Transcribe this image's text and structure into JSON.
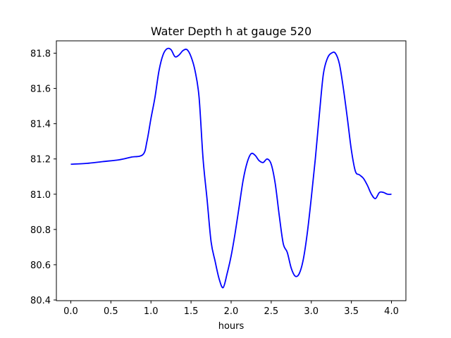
{
  "chart_data": {
    "type": "line",
    "title": "Water Depth h at gauge 520",
    "xlabel": "hours",
    "ylabel": "",
    "xlim": [
      -0.18,
      4.18
    ],
    "ylim": [
      80.396,
      81.87
    ],
    "xticks": [
      0.0,
      0.5,
      1.0,
      1.5,
      2.0,
      2.5,
      3.0,
      3.5,
      4.0
    ],
    "xtick_labels": [
      "0.0",
      "0.5",
      "1.0",
      "1.5",
      "2.0",
      "2.5",
      "3.0",
      "3.5",
      "4.0"
    ],
    "yticks": [
      80.4,
      80.6,
      80.8,
      81.0,
      81.2,
      81.4,
      81.6,
      81.8
    ],
    "ytick_labels": [
      "80.4",
      "80.6",
      "80.8",
      "81.0",
      "81.2",
      "81.4",
      "81.6",
      "81.8"
    ],
    "grid": false,
    "legend": "none",
    "series": [
      {
        "color": "#0000ff",
        "x": [
          0.0,
          0.2,
          0.4,
          0.6,
          0.75,
          0.9,
          0.95,
          1.0,
          1.05,
          1.1,
          1.15,
          1.2,
          1.25,
          1.3,
          1.35,
          1.4,
          1.45,
          1.5,
          1.55,
          1.6,
          1.65,
          1.7,
          1.75,
          1.8,
          1.85,
          1.9,
          1.95,
          2.0,
          2.05,
          2.1,
          2.15,
          2.2,
          2.25,
          2.3,
          2.35,
          2.4,
          2.45,
          2.5,
          2.55,
          2.6,
          2.65,
          2.7,
          2.75,
          2.8,
          2.85,
          2.9,
          2.95,
          3.0,
          3.05,
          3.1,
          3.15,
          3.2,
          3.25,
          3.3,
          3.35,
          3.4,
          3.45,
          3.5,
          3.55,
          3.6,
          3.65,
          3.7,
          3.75,
          3.8,
          3.85,
          3.9,
          3.95,
          4.0
        ],
        "y": [
          81.17,
          81.175,
          81.185,
          81.195,
          81.21,
          81.225,
          81.3,
          81.43,
          81.55,
          81.7,
          81.79,
          81.825,
          81.82,
          81.78,
          81.79,
          81.815,
          81.82,
          81.78,
          81.7,
          81.55,
          81.2,
          80.97,
          80.73,
          80.62,
          80.52,
          80.47,
          80.55,
          80.65,
          80.78,
          80.93,
          81.08,
          81.18,
          81.23,
          81.22,
          81.19,
          81.18,
          81.2,
          81.17,
          81.06,
          80.88,
          80.72,
          80.67,
          80.58,
          80.535,
          80.55,
          80.63,
          80.78,
          80.98,
          81.2,
          81.45,
          81.68,
          81.77,
          81.8,
          81.8,
          81.74,
          81.6,
          81.43,
          81.25,
          81.13,
          81.11,
          81.09,
          81.05,
          81.0,
          80.975,
          81.01,
          81.01,
          81.0,
          81.0
        ]
      }
    ]
  }
}
